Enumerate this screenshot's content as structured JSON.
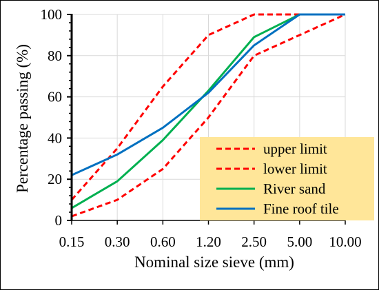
{
  "chart_data": {
    "type": "line",
    "title": "",
    "xlabel": "Nominal size sieve (mm)",
    "ylabel": "Percentage passing (%)",
    "categories": [
      "0.15",
      "0.30",
      "0.60",
      "1.20",
      "2.50",
      "5.00",
      "10.00"
    ],
    "ylim": [
      0,
      100
    ],
    "yticks": [
      "0",
      "20",
      "40",
      "60",
      "80",
      "100"
    ],
    "grid": true,
    "legend_position": "bottom-right",
    "legend_background": "#FFE699",
    "series": [
      {
        "name": "upper limit",
        "values": [
          10,
          35,
          65,
          90,
          100,
          100,
          100
        ],
        "color": "#FF0000",
        "dash": true
      },
      {
        "name": "lower limit",
        "values": [
          2,
          10,
          25,
          50,
          80,
          90,
          100
        ],
        "color": "#FF0000",
        "dash": true
      },
      {
        "name": "River sand",
        "values": [
          6,
          19,
          39,
          63,
          89,
          100,
          100
        ],
        "color": "#00B050",
        "dash": false
      },
      {
        "name": "Fine roof tile",
        "values": [
          22,
          32,
          45,
          62,
          85,
          100,
          100
        ],
        "color": "#0070C0",
        "dash": false
      }
    ]
  }
}
